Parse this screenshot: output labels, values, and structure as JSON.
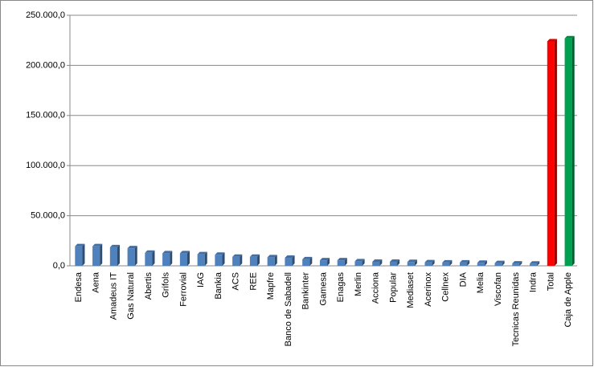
{
  "chart_data": {
    "type": "bar",
    "categories": [
      "Endesa",
      "Aena",
      "Amadeus IT",
      "Gas Natural",
      "Abertis",
      "Grifols",
      "Ferrovial",
      "IAG",
      "Bankia",
      "ACS",
      "REE",
      "Mapfre",
      "Banco de Sabadell",
      "Bankinter",
      "Gamesa",
      "Enagas",
      "Merlin",
      "Acciona",
      "Popular",
      "Mediaset",
      "Acerinox",
      "Cellnex",
      "DIA",
      "Melia",
      "Viscofan",
      "Tecnicas Reunidas",
      "Indra",
      "Total",
      "Caja de Apple"
    ],
    "values": [
      19500,
      19500,
      18500,
      17500,
      13000,
      12500,
      12500,
      11500,
      11000,
      9000,
      9000,
      8500,
      8000,
      6500,
      5500,
      5500,
      4500,
      4000,
      4000,
      3800,
      3500,
      3300,
      3300,
      3000,
      2700,
      2300,
      2200,
      224000,
      227000
    ],
    "colors": [
      "#4f81bd",
      "#4f81bd",
      "#4f81bd",
      "#4f81bd",
      "#4f81bd",
      "#4f81bd",
      "#4f81bd",
      "#4f81bd",
      "#4f81bd",
      "#4f81bd",
      "#4f81bd",
      "#4f81bd",
      "#4f81bd",
      "#4f81bd",
      "#4f81bd",
      "#4f81bd",
      "#4f81bd",
      "#4f81bd",
      "#4f81bd",
      "#4f81bd",
      "#4f81bd",
      "#4f81bd",
      "#4f81bd",
      "#4f81bd",
      "#4f81bd",
      "#4f81bd",
      "#4f81bd",
      "#ff0000",
      "#00a050"
    ],
    "ylim": [
      0,
      250000
    ],
    "yticks": [
      {
        "value": 0,
        "label": "0,0"
      },
      {
        "value": 50000,
        "label": "50.000,0"
      },
      {
        "value": 100000,
        "label": "100.000,0"
      },
      {
        "value": 150000,
        "label": "150.000,0"
      },
      {
        "value": 200000,
        "label": "200.000,0"
      },
      {
        "value": 250000,
        "label": "250.000,0"
      }
    ],
    "grid": true
  }
}
